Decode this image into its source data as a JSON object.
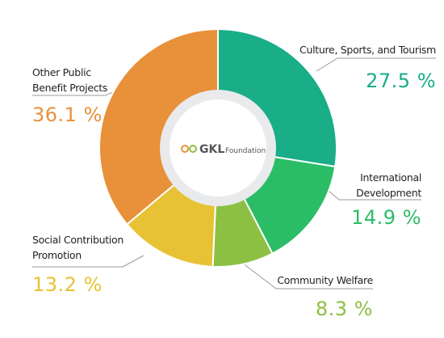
{
  "chart_data": {
    "type": "donut",
    "categories": [
      "Culture, Sports, and Tourism",
      "International\nDevelopment",
      "Community Welfare",
      "Social Contribution\nPromotion",
      "Other Public\nBenefit Projects"
    ],
    "values": [
      27.5,
      14.9,
      8.3,
      13.2,
      36.1
    ],
    "value_labels": [
      "27.5 %",
      "14.9 %",
      "8.3 %",
      "13.2 %",
      "36.1 %"
    ],
    "colors": [
      "#19ad88",
      "#2abd66",
      "#8cc043",
      "#e7c235",
      "#e8913a"
    ],
    "center_logo": {
      "brand": "GKL",
      "text": "Foundation"
    }
  }
}
